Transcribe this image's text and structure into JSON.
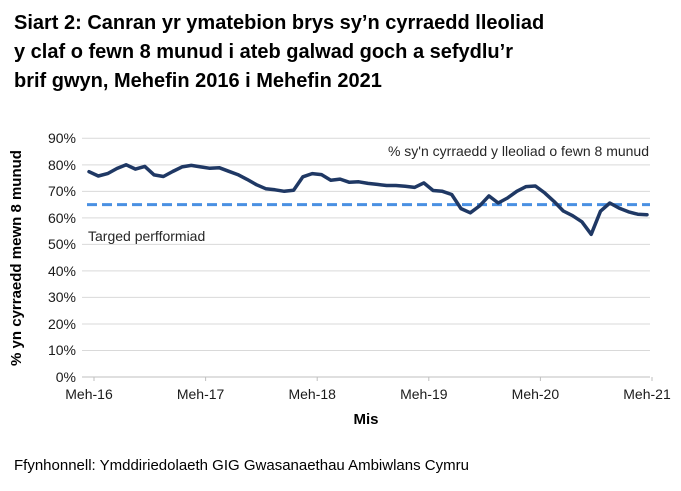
{
  "title_lines": [
    "Siart 2: Canran yr ymatebion brys sy’n cyrraedd lleoliad",
    "y claf o fewn 8 munud i ateb galwad goch a sefydlu’r",
    "brif gwyn, Mehefin 2016 i Mehefin 2021"
  ],
  "source": "Ffynhonnell: Ymddiriedolaeth GIG Gwasanaethau Ambiwlans Cymru",
  "colors": {
    "grid": "#D9D9D9",
    "axis": "#BFBFBF",
    "series_line": "#1F3864",
    "target_line": "#4A90E2"
  },
  "chart_data": {
    "type": "line",
    "xlabel": "Mis",
    "ylabel": "% yn cyrraedd mewn 8 munud",
    "ylim": [
      0,
      90
    ],
    "ytick_step": 10,
    "yticks": [
      "0%",
      "10%",
      "20%",
      "30%",
      "40%",
      "50%",
      "60%",
      "70%",
      "80%",
      "90%"
    ],
    "x_tick_labels": [
      "Meh-16",
      "Meh-17",
      "Meh-18",
      "Meh-19",
      "Meh-20",
      "Meh-21"
    ],
    "x_interval": "monthly",
    "x_range": "Meh-16 i Meh-21",
    "grid": true,
    "legend_position": "top-right-inside",
    "series": [
      {
        "name": "% sy'n cyrraedd y lleoliad o fewn 8 munud",
        "color": "#1F3864",
        "style": "solid",
        "values": [
          77.4,
          75.8,
          76.7,
          78.6,
          80.0,
          78.4,
          79.4,
          76.2,
          75.6,
          77.5,
          79.2,
          79.8,
          79.2,
          78.7,
          78.9,
          77.6,
          76.3,
          74.5,
          72.5,
          71.0,
          70.6,
          70.0,
          70.4,
          75.5,
          76.7,
          76.3,
          74.2,
          74.6,
          73.4,
          73.6,
          73.0,
          72.6,
          72.2,
          72.2,
          71.9,
          71.5,
          73.2,
          70.3,
          70.0,
          68.8,
          63.5,
          61.9,
          64.5,
          68.3,
          65.6,
          67.5,
          70.0,
          71.8,
          72.0,
          69.4,
          66.2,
          62.6,
          60.8,
          58.5,
          53.8,
          62.5,
          65.6,
          63.7,
          62.3,
          61.4,
          61.2
        ]
      },
      {
        "name": "Targed perfformiad",
        "color": "#4A90E2",
        "style": "dashed",
        "value": 65
      }
    ]
  }
}
